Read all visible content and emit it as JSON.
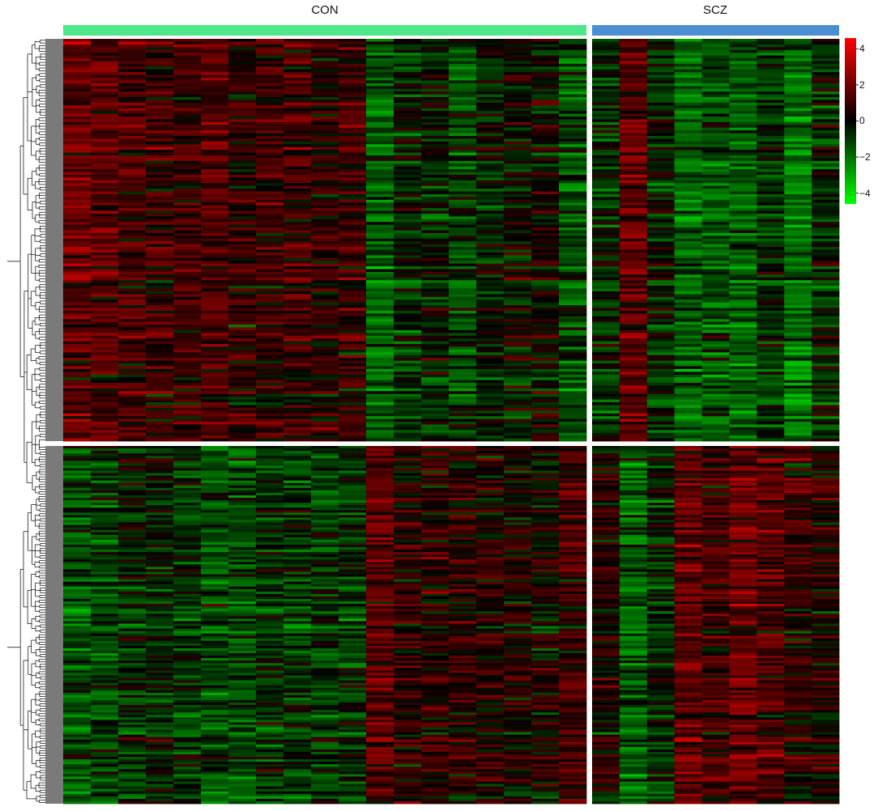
{
  "figure": {
    "type": "clustered heatmap"
  },
  "chart_data": {
    "type": "heatmap",
    "groups": [
      {
        "name": "CON",
        "color": "#4ee88a",
        "n_samples": 19
      },
      {
        "name": "SCZ",
        "color": "#4b8fd2",
        "n_samples": 9
      }
    ],
    "row_clusters": [
      {
        "label": "",
        "n_rows": 145,
        "CON_means": [
          1.5,
          1.3,
          1.0,
          0.8,
          0.7,
          1.1,
          0.6,
          0.8,
          0.9,
          0.5,
          0.8,
          -1.4,
          -0.5,
          -0.4,
          -0.8,
          -0.3,
          -0.2,
          0.0,
          -1.0
        ],
        "SCZ_means": [
          -0.6,
          1.4,
          -0.4,
          -1.5,
          -1.2,
          -1.4,
          -0.6,
          -1.8,
          -0.5
        ]
      },
      {
        "label": "",
        "n_rows": 145,
        "CON_means": [
          -1.2,
          -0.9,
          -0.5,
          -0.4,
          -0.7,
          -1.1,
          -1.0,
          -0.6,
          -0.8,
          -0.6,
          -0.7,
          1.2,
          0.5,
          0.6,
          0.5,
          0.4,
          0.3,
          0.2,
          0.9
        ],
        "SCZ_means": [
          0.4,
          -1.4,
          -0.5,
          1.4,
          0.8,
          1.6,
          1.2,
          0.6,
          0.4
        ]
      }
    ],
    "color_scale": {
      "min": -4.6,
      "max": 4.6,
      "low_color": "#00ff00",
      "mid_color": "#000000",
      "high_color": "#ff0000",
      "ticks": [
        4,
        2,
        0,
        -2,
        -4
      ],
      "tick_labels": [
        "4",
        "2",
        "0",
        "−2",
        "−4"
      ]
    },
    "dendrogram": "rows",
    "title": "",
    "xlabel": "",
    "ylabel": ""
  }
}
